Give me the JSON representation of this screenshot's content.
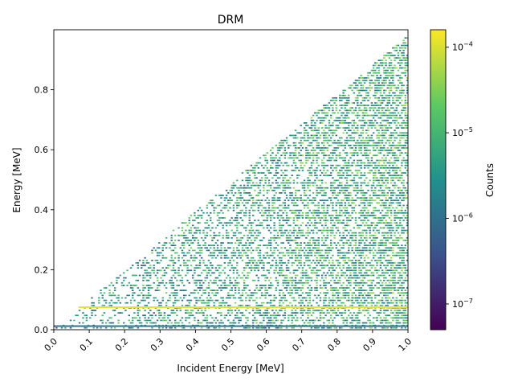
{
  "chart_data": {
    "type": "heatmap",
    "title": "DRM",
    "xlabel": "Incident Energy [MeV]",
    "ylabel": "Energy [MeV]",
    "xlim": [
      0.0,
      1.0
    ],
    "ylim": [
      0.0,
      1.0
    ],
    "xticks": [
      "0.0",
      "0.1",
      "0.2",
      "0.3",
      "0.4",
      "0.5",
      "0.6",
      "0.7",
      "0.8",
      "0.9",
      "1.0"
    ],
    "xtick_values": [
      0.0,
      0.1,
      0.2,
      0.3,
      0.4,
      0.5,
      0.6,
      0.7,
      0.8,
      0.9,
      1.0
    ],
    "yticks": [
      "0.0",
      "0.2",
      "0.4",
      "0.6",
      "0.8"
    ],
    "ytick_values": [
      0.0,
      0.2,
      0.4,
      0.6,
      0.8
    ],
    "colorbar": {
      "label": "Counts",
      "scale": "log",
      "range": [
        5e-08,
        0.00016
      ],
      "ticks": [
        {
          "base": "10",
          "exp": "−4",
          "value": 0.0001
        },
        {
          "base": "10",
          "exp": "−5",
          "value": 1e-05
        },
        {
          "base": "10",
          "exp": "−6",
          "value": 1e-06
        },
        {
          "base": "10",
          "exp": "−7",
          "value": 1e-07
        }
      ],
      "colormap": [
        "#440154",
        "#3b528b",
        "#21918c",
        "#5ec962",
        "#fde725"
      ]
    },
    "structure": {
      "nonzero_region": "below diagonal energy <= incident energy",
      "photopeak_line": {
        "incident_range": [
          0.07,
          1.0
        ],
        "energy": 0.075,
        "value": 0.00012
      },
      "baseline_line": {
        "incident_range": [
          0.0,
          1.0
        ],
        "energy": 0.012,
        "value": 1e-06
      },
      "typical_value": 3e-06,
      "max_value": 0.00015
    }
  }
}
